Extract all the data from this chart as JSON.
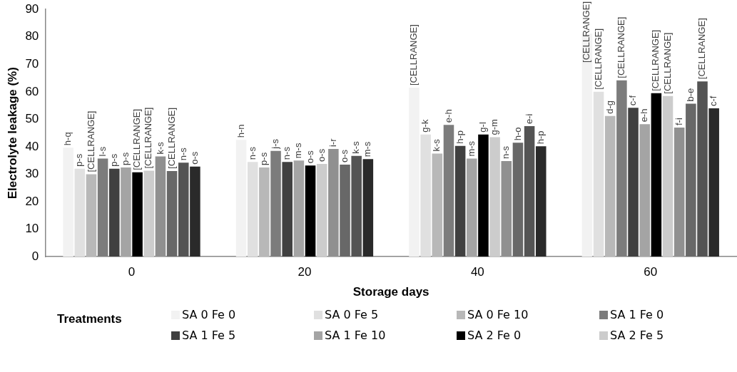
{
  "chart_data": {
    "type": "bar",
    "xlabel": "Storage days",
    "ylabel": "Electrolyte leakage (%)",
    "legend_title": "Treatments",
    "legend": "bottom",
    "categories": [
      "0",
      "20",
      "40",
      "60"
    ],
    "ylim": [
      0,
      90
    ],
    "yticks": [
      0,
      10,
      20,
      30,
      40,
      50,
      60,
      70,
      80,
      90
    ],
    "grid": false,
    "series": [
      {
        "name": "SA 0 Fe 0",
        "color": "#f2f2f2",
        "values": [
          39.7,
          42.5,
          61.5,
          81.2
        ],
        "value_labels": [
          "h-q",
          "h-n",
          "[CELLRANGE]",
          "[CELLRANGE]"
        ]
      },
      {
        "name": "SA 0 Fe 5",
        "color": "#e0e0e0",
        "values": [
          32,
          34.5,
          44.5,
          60
        ],
        "value_labels": [
          "p-s",
          "n-s",
          "g-k",
          "[CELLRANGE]"
        ]
      },
      {
        "name": "SA 0 Fe 10",
        "color": "#b8b8b8",
        "values": [
          30,
          32.5,
          37.5,
          51.2
        ],
        "value_labels": [
          "[CELLRANGE]",
          "p-s",
          "k-s",
          "d-g"
        ]
      },
      {
        "name": "SA 1 Fe 0",
        "color": "#7c7c7c",
        "values": [
          35.7,
          38.5,
          48,
          64.2
        ],
        "value_labels": [
          "l-s",
          "j-s",
          "e-h",
          "[CELLRANGE]"
        ]
      },
      {
        "name": "SA 1 Fe 5",
        "color": "#404040",
        "values": [
          32,
          34.5,
          40.3,
          54.2
        ],
        "value_labels": [
          "p-s",
          "n-s",
          "h-p",
          "c-f"
        ]
      },
      {
        "name": "SA 1 Fe 10",
        "color": "#a4a4a4",
        "values": [
          32.5,
          35,
          35.7,
          48.2
        ],
        "value_labels": [
          "p-s",
          "m-s",
          "m-s",
          "e-h"
        ]
      },
      {
        "name": "SA 2 Fe 0",
        "color": "#000000",
        "values": [
          30.7,
          33.2,
          44.5,
          59.5
        ],
        "value_labels": [
          "[CELLRANGE]",
          "o-s",
          "g-l",
          "[CELLRANGE]"
        ]
      },
      {
        "name": "SA 2 Fe 5",
        "color": "#cccccc",
        "values": [
          31.3,
          33.8,
          43.5,
          58.5
        ],
        "value_labels": [
          "[CELLRANGE]",
          "o-s",
          "g-m",
          "[CELLRANGE]"
        ]
      },
      {
        "color": "#909090",
        "values": [
          36.5,
          39.2,
          34.8,
          47
        ],
        "value_labels": [
          "k-s",
          "i-r",
          "n-s",
          "f-i"
        ]
      },
      {
        "color": "#686868",
        "values": [
          31.2,
          33.5,
          41.5,
          55.7
        ],
        "value_labels": [
          "[CELLRANGE]",
          "o-s",
          "h-o",
          "b-e"
        ]
      },
      {
        "color": "#545454",
        "values": [
          34.2,
          36.7,
          47.5,
          63.8
        ],
        "value_labels": [
          "n-s",
          "k-s",
          "e-i",
          "[CELLRANGE]"
        ]
      },
      {
        "color": "#2a2a2a",
        "values": [
          32.8,
          35.5,
          40.2,
          54
        ],
        "value_labels": [
          "o-s",
          "m-s",
          "h-p",
          "c-f"
        ]
      }
    ]
  }
}
